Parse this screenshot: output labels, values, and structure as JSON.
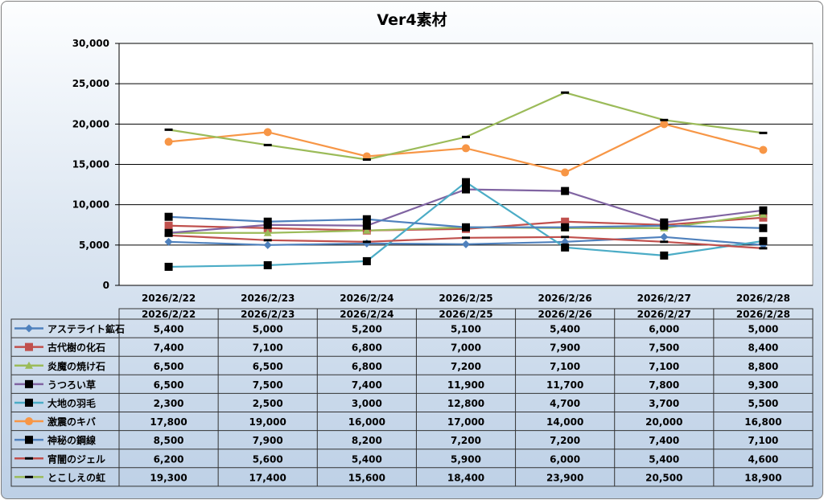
{
  "chart_data": {
    "type": "line",
    "title": "Ver4素材",
    "categories": [
      "2026/2/22",
      "2026/2/23",
      "2026/2/24",
      "2026/2/25",
      "2026/2/26",
      "2026/2/27",
      "2026/2/28"
    ],
    "ylim": [
      0,
      30000
    ],
    "yticks": [
      0,
      5000,
      10000,
      15000,
      20000,
      25000,
      30000
    ],
    "ytick_labels": [
      "0",
      "5,000",
      "10,000",
      "15,000",
      "20,000",
      "25,000",
      "30,000"
    ],
    "grid": true,
    "legend": "data-table-bottom",
    "series": [
      {
        "name": "アステライト鉱石",
        "color": "#4F81BD",
        "marker": "diamond",
        "values": [
          5400,
          5000,
          5200,
          5100,
          5400,
          6000,
          5000
        ],
        "labels": [
          "5,400",
          "5,000",
          "5,200",
          "5,100",
          "5,400",
          "6,000",
          "5,000"
        ]
      },
      {
        "name": "古代樹の化石",
        "color": "#C0504D",
        "marker": "square",
        "values": [
          7400,
          7100,
          6800,
          7000,
          7900,
          7500,
          8400
        ],
        "labels": [
          "7,400",
          "7,100",
          "6,800",
          "7,000",
          "7,900",
          "7,500",
          "8,400"
        ]
      },
      {
        "name": "炎魔の焼け石",
        "color": "#9BBB59",
        "marker": "triangle",
        "values": [
          6500,
          6500,
          6800,
          7200,
          7100,
          7100,
          8800
        ],
        "labels": [
          "6,500",
          "6,500",
          "6,800",
          "7,200",
          "7,100",
          "7,100",
          "8,800"
        ]
      },
      {
        "name": "うつろい草",
        "color": "#8064A2",
        "marker": "blacksquare",
        "values": [
          6500,
          7500,
          7400,
          11900,
          11700,
          7800,
          9300
        ],
        "labels": [
          "6,500",
          "7,500",
          "7,400",
          "11,900",
          "11,700",
          "7,800",
          "9,300"
        ]
      },
      {
        "name": "大地の羽毛",
        "color": "#4BACC6",
        "marker": "blacksquare",
        "values": [
          2300,
          2500,
          3000,
          12800,
          4700,
          3700,
          5500
        ],
        "labels": [
          "2,300",
          "2,500",
          "3,000",
          "12,800",
          "4,700",
          "3,700",
          "5,500"
        ]
      },
      {
        "name": "激震のキバ",
        "color": "#F79646",
        "marker": "circle",
        "values": [
          17800,
          19000,
          16000,
          17000,
          14000,
          20000,
          16800
        ],
        "labels": [
          "17,800",
          "19,000",
          "16,000",
          "17,000",
          "14,000",
          "20,000",
          "16,800"
        ]
      },
      {
        "name": "神秘の鋼線",
        "color": "#4F81BD",
        "marker": "blacksquare",
        "values": [
          8500,
          7900,
          8200,
          7200,
          7200,
          7400,
          7100
        ],
        "labels": [
          "8,500",
          "7,900",
          "8,200",
          "7,200",
          "7,200",
          "7,400",
          "7,100"
        ]
      },
      {
        "name": "宵闇のジェル",
        "color": "#C0504D",
        "marker": "dash",
        "values": [
          6200,
          5600,
          5400,
          5900,
          6000,
          5400,
          4600
        ],
        "labels": [
          "6,200",
          "5,600",
          "5,400",
          "5,900",
          "6,000",
          "5,400",
          "4,600"
        ]
      },
      {
        "name": "とこしえの虹",
        "color": "#9BBB59",
        "marker": "dash",
        "values": [
          19300,
          17400,
          15600,
          18400,
          23900,
          20500,
          18900
        ],
        "labels": [
          "19,300",
          "17,400",
          "15,600",
          "18,400",
          "23,900",
          "20,500",
          "18,900"
        ]
      }
    ]
  }
}
